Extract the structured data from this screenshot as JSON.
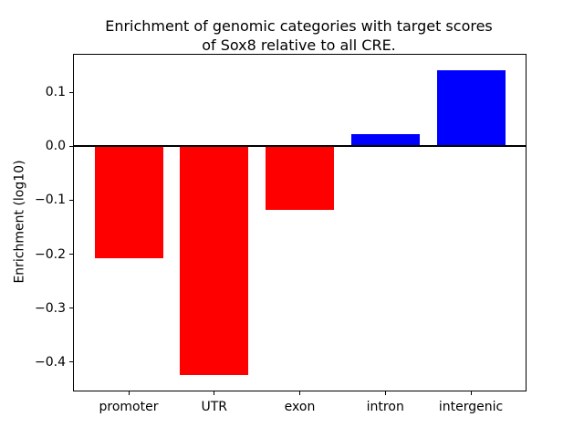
{
  "chart_data": {
    "type": "bar",
    "title": "Enrichment of genomic categories with target scores\nof Sox8 relative to all CRE.",
    "title_lines": [
      "Enrichment of genomic categories with target scores",
      "of Sox8 relative to all CRE."
    ],
    "xlabel": "",
    "ylabel": "Enrichment (log10)",
    "categories": [
      "promoter",
      "UTR",
      "exon",
      "intron",
      "intergenic"
    ],
    "values": [
      -0.207,
      -0.425,
      -0.118,
      0.023,
      0.142
    ],
    "bar_colors": [
      "#ff0000",
      "#ff0000",
      "#ff0000",
      "#0000ff",
      "#0000ff"
    ],
    "negative_color": "#ff0000",
    "positive_color": "#0000ff",
    "ylim": [
      -0.453,
      0.17
    ],
    "yticks": [
      0.1,
      0.0,
      -0.1,
      -0.2,
      -0.3,
      -0.4
    ],
    "ytick_labels": [
      "0.1",
      "0.0",
      "−0.1",
      "−0.2",
      "−0.3",
      "−0.4"
    ],
    "zero_line": true,
    "grid": false,
    "legend": "none",
    "bar_width_fraction": 0.8
  }
}
